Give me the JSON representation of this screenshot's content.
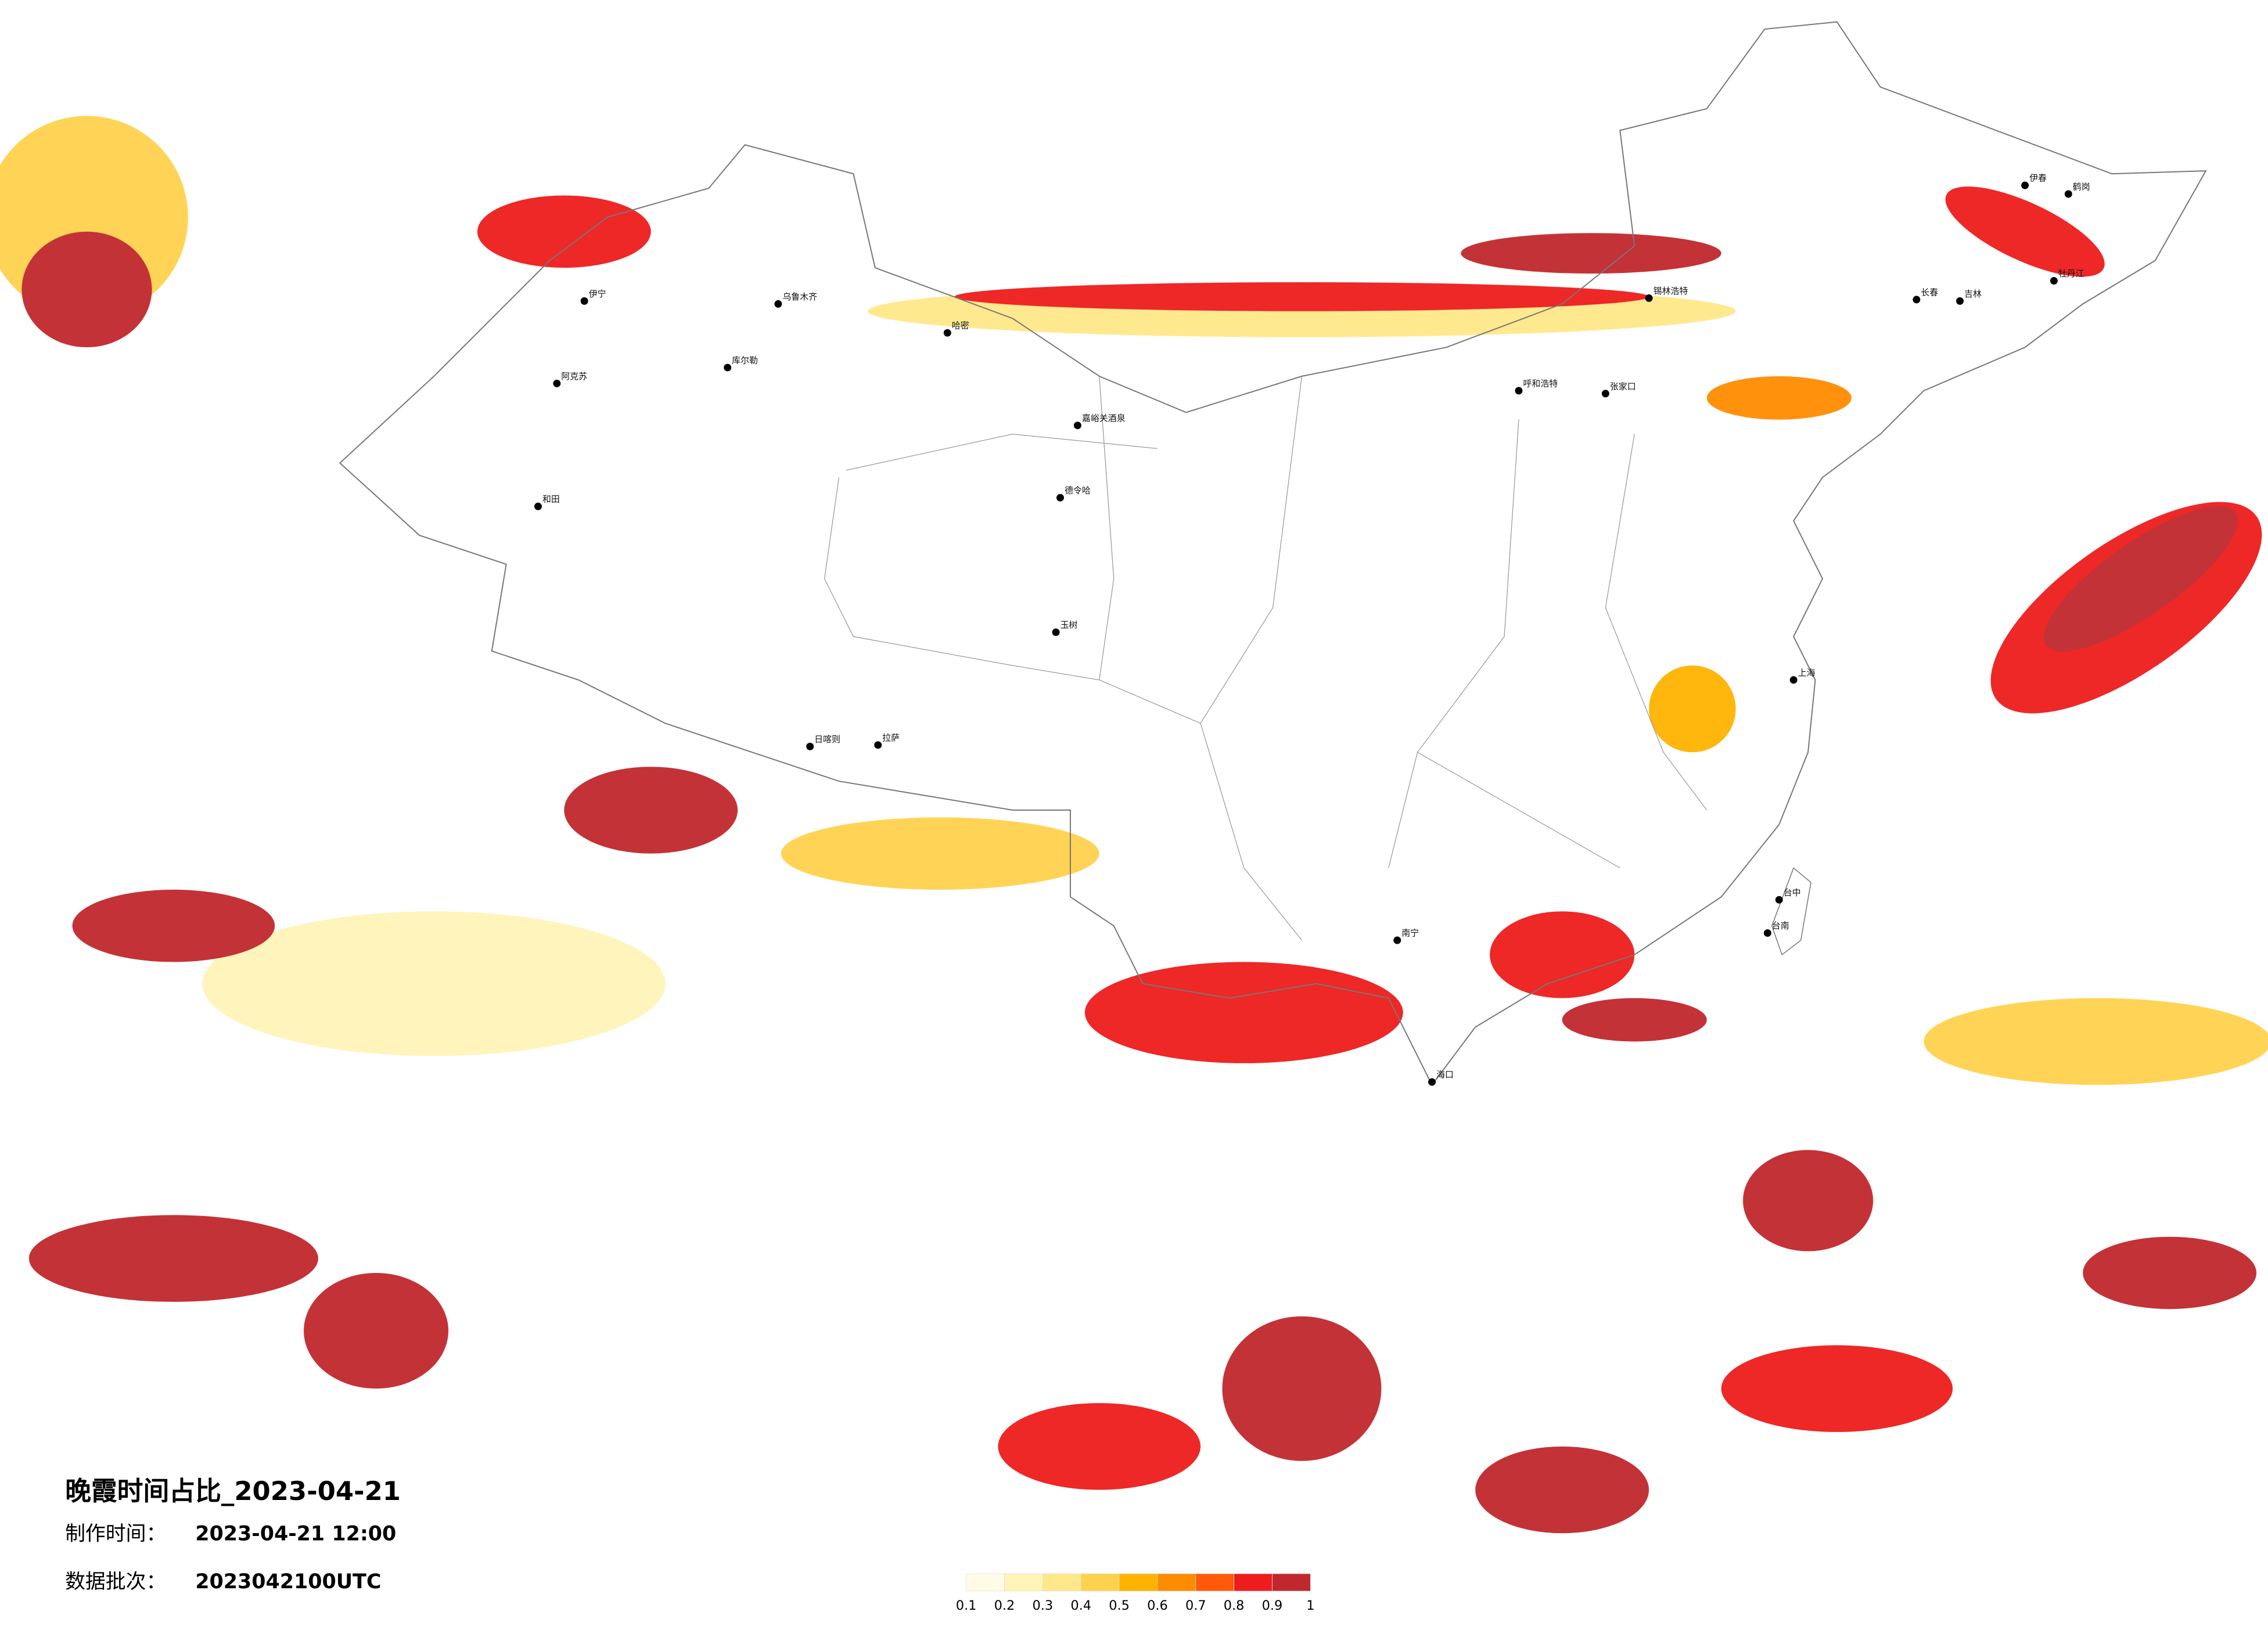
{
  "title": "晚霞时间占比_2023-04-21",
  "made_label": "制作时间：",
  "made_value": "2023-04-21 12:00",
  "batch_label": "数据批次：",
  "batch_value": "2023042100UTC",
  "colorbar": {
    "ticks": [
      0.1,
      0.2,
      0.3,
      0.4,
      0.5,
      0.6,
      0.7,
      0.8,
      0.9,
      1
    ],
    "colors": [
      "#fffbe6",
      "#fff4b8",
      "#ffe88a",
      "#ffd24d",
      "#ffb300",
      "#ff8c00",
      "#ff5a0a",
      "#ee1c1c",
      "#c0282d"
    ]
  },
  "cities": [
    "伊宁",
    "乌鲁木齐",
    "阿克苏",
    "库尔勒",
    "和田",
    "哈密",
    "嘉峪关酒泉",
    "德令哈",
    "玉树",
    "日喀则",
    "拉萨",
    "呼和浩特",
    "张家口",
    "锡林浩特",
    "长春",
    "吉林",
    "伊春",
    "鹤岗",
    "牡丹江",
    "上海",
    "台中",
    "台南",
    "南宁",
    "海口"
  ]
}
